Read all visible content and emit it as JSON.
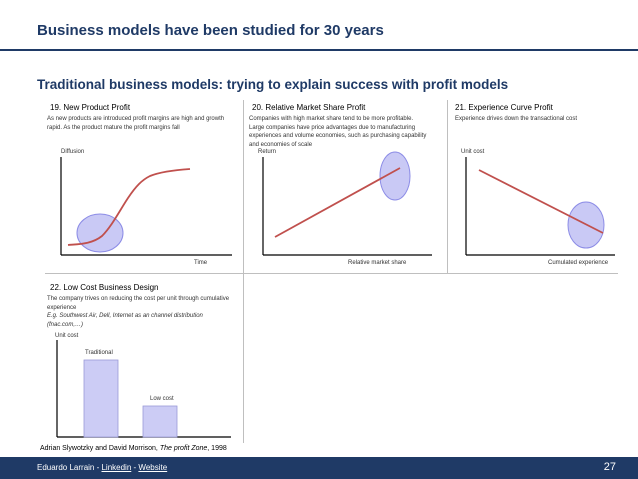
{
  "slide": {
    "title": "Business models have been studied for 30 years",
    "subtitle": "Traditional business models: trying to explain success with profit models"
  },
  "panels": [
    {
      "title": "19. New Product Profit",
      "description": "As new products are introduced profit margins are high and growth rapid. As the product mature the profit margins fall",
      "ylabel": "Diffusion",
      "xlabel": "Time"
    },
    {
      "title": "20. Relative Market Share Profit",
      "description": "Companies with high market share tend to be more profitable. Large companies have price advantages due to manufacturing experiences and volume economies, such as purchasing capability and economies of scale",
      "ylabel": "Return",
      "xlabel": "Relative market share"
    },
    {
      "title": "21. Experience Curve Profit",
      "description": "Experience drives down the transactional cost",
      "ylabel": "Unit cost",
      "xlabel": "Cumulated experience"
    },
    {
      "title": "22. Low Cost Business Design",
      "description": "The company trives on reducing the cost per unit through cumulative experience",
      "example": "E.g. Southwest Air, Dell, Internet as an channel distribution (fnac.com,…)",
      "ylabel": "Unit cost",
      "bars": [
        {
          "label": "Traditional",
          "value": 1.0
        },
        {
          "label": "Low cost",
          "value": 0.4
        }
      ]
    }
  ],
  "citation": {
    "prefix": "Adrian Slywotzky and David Morrison, ",
    "book": "The profit Zone",
    "suffix": ", 1998"
  },
  "footer": {
    "author": "Eduardo Larrain",
    "sep": " - ",
    "linkedin": "Linkedin",
    "website": "Website",
    "page_number": "27"
  },
  "colors": {
    "brand_navy": "#1f3a66",
    "curve_red": "#c0504d",
    "highlight_fill": "#c9c9f5",
    "highlight_stroke": "#8c8ce6",
    "bar_fill": "#ccccf5"
  }
}
